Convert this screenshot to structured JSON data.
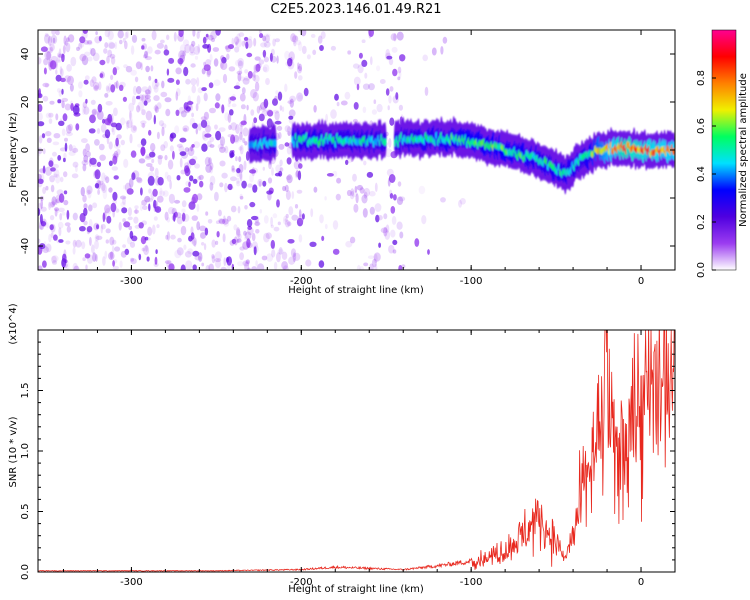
{
  "title": "C2E5.2023.146.01.49.R21",
  "chart_data": [
    {
      "type": "heatmap",
      "panel": "spectrogram",
      "xlabel": "Height of straight line (km)",
      "ylabel": "Frequency (Hz)",
      "xlim": [
        -355,
        20
      ],
      "ylim": [
        -50,
        50
      ],
      "xticks": [
        -300,
        -200,
        -100,
        0
      ],
      "yticks": [
        -40,
        -20,
        0,
        20,
        40
      ],
      "colorbar": {
        "label": "Normalized spectral amplitude",
        "range": [
          0.0,
          1.0
        ],
        "ticks": [
          0.0,
          0.2,
          0.4,
          0.6,
          0.8
        ],
        "colormap": [
          "#ffffff",
          "#9b3cf0",
          "#4f00e0",
          "#0000ff",
          "#00e0ff",
          "#00ff60",
          "#f0f000",
          "#ff8000",
          "#ff0000",
          "#ff0090"
        ]
      },
      "signal_track": {
        "description_x": [
          -230,
          -200,
          -150,
          -120,
          -100,
          -80,
          -60,
          -45,
          -35,
          -25,
          -10,
          0,
          20
        ],
        "center_frequency_hz": [
          2,
          4,
          4,
          5,
          4,
          0,
          -4,
          -10,
          -4,
          0,
          1,
          0,
          0
        ],
        "peak_amplitude": [
          0.45,
          0.55,
          0.5,
          0.55,
          0.6,
          0.6,
          0.55,
          0.55,
          0.5,
          0.7,
          0.9,
          0.85,
          0.8
        ]
      }
    },
    {
      "type": "line",
      "panel": "snr",
      "xlabel": "Height of straight line (km)",
      "ylabel": "SNR (10 * v/v)",
      "y_multiplier": "(x10^4)",
      "xlim": [
        -355,
        20
      ],
      "ylim": [
        0,
        2.0
      ],
      "xticks": [
        -300,
        -200,
        -100,
        0
      ],
      "yticks": [
        0.0,
        0.5,
        1.0,
        1.5
      ],
      "series_color": "#e8281e",
      "series": [
        {
          "x": [
            -355,
            -300,
            -250,
            -200,
            -180,
            -160,
            -140,
            -120,
            -110,
            -100,
            -90,
            -80,
            -70,
            -60,
            -55,
            -50,
            -45,
            -40,
            -35,
            -30,
            -25,
            -22,
            -20,
            -18,
            -15,
            -10,
            -5,
            0,
            5,
            10,
            15,
            20
          ],
          "y": [
            0.01,
            0.01,
            0.01,
            0.02,
            0.04,
            0.03,
            0.02,
            0.05,
            0.07,
            0.09,
            0.12,
            0.18,
            0.3,
            0.45,
            0.35,
            0.25,
            0.1,
            0.3,
            0.6,
            0.9,
            1.05,
            1.3,
            1.9,
            1.1,
            0.9,
            1.1,
            1.35,
            1.25,
            1.45,
            1.5,
            1.55,
            1.6
          ]
        }
      ]
    }
  ]
}
